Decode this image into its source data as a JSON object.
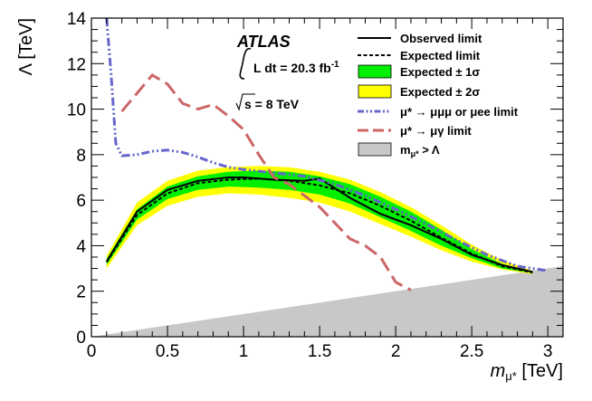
{
  "chart_data": {
    "type": "line",
    "experiment": "ATLAS",
    "luminosity_prefix": "L dt = 20.3 fb",
    "luminosity_sup": "-1",
    "energy_label": "s = 8 TeV",
    "xlabel": "m",
    "xlabel_sub": "μ*",
    "xlabel_unit": " [TeV]",
    "ylabel": "Λ [TeV]",
    "xlim": [
      0,
      3.1
    ],
    "ylim": [
      0,
      14
    ],
    "xticks": [
      0,
      0.5,
      1,
      1.5,
      2,
      2.5,
      3
    ],
    "xtick_labels": [
      "0",
      "0.5",
      "1",
      "1.5",
      "2",
      "2.5",
      "3"
    ],
    "yticks": [
      0,
      2,
      4,
      6,
      8,
      10,
      12,
      14
    ],
    "ytick_labels": [
      "0",
      "2",
      "4",
      "6",
      "8",
      "10",
      "12",
      "14"
    ],
    "colors": {
      "observed": "#000000",
      "expected": "#000000",
      "band1": "#00ee00",
      "band2": "#ffff00",
      "mumumu": "#6666cc",
      "mugamma": "#cc6666",
      "excluded": "#c8c8c8"
    },
    "legend": {
      "observed": "Observed limit",
      "expected": "Expected limit",
      "band1": "Expected ± 1σ",
      "band2": "Expected ± 2σ",
      "mumumu_prefix": "μ* → μμμ or μee",
      "mumumu_suffix": " limit",
      "mugamma_prefix": "μ* → μγ",
      "mugamma_suffix": " limit",
      "excluded_prefix": "m",
      "excluded_sub": "μ*",
      "excluded_suffix": " > Λ"
    },
    "series": [
      {
        "name": "Expected ± 2σ",
        "x": [
          0.1,
          0.3,
          0.5,
          0.7,
          0.9,
          1.1,
          1.3,
          1.5,
          1.7,
          1.9,
          2.1,
          2.3,
          2.5,
          2.7,
          2.9
        ],
        "upper": [
          3.55,
          5.9,
          6.85,
          7.3,
          7.45,
          7.5,
          7.45,
          7.25,
          6.9,
          6.35,
          5.7,
          4.9,
          4.05,
          3.35,
          2.9
        ],
        "lower": [
          3.0,
          4.9,
          5.75,
          6.15,
          6.3,
          6.25,
          6.1,
          5.9,
          5.5,
          4.95,
          4.4,
          3.8,
          3.3,
          2.95,
          2.75
        ]
      },
      {
        "name": "Expected ± 1σ",
        "x": [
          0.1,
          0.3,
          0.5,
          0.7,
          0.9,
          1.1,
          1.3,
          1.5,
          1.7,
          1.9,
          2.1,
          2.3,
          2.5,
          2.7,
          2.9
        ],
        "upper": [
          3.42,
          5.6,
          6.6,
          7.05,
          7.25,
          7.3,
          7.25,
          7.05,
          6.7,
          6.15,
          5.5,
          4.7,
          3.85,
          3.2,
          2.85
        ],
        "lower": [
          3.15,
          5.15,
          6.05,
          6.45,
          6.6,
          6.55,
          6.45,
          6.25,
          5.85,
          5.25,
          4.65,
          4.0,
          3.45,
          3.0,
          2.8
        ]
      },
      {
        "name": "Expected limit",
        "x": [
          0.1,
          0.3,
          0.5,
          0.7,
          0.9,
          1.1,
          1.3,
          1.5,
          1.7,
          1.9,
          2.1,
          2.3,
          2.5,
          2.7,
          2.9
        ],
        "y": [
          3.28,
          5.35,
          6.3,
          6.75,
          6.9,
          6.95,
          6.85,
          6.65,
          6.3,
          5.75,
          5.1,
          4.35,
          3.65,
          3.1,
          2.82
        ]
      },
      {
        "name": "Observed limit",
        "x": [
          0.1,
          0.3,
          0.5,
          0.7,
          0.9,
          1.0,
          1.2,
          1.4,
          1.5,
          1.7,
          1.9,
          2.1,
          2.3,
          2.5,
          2.7,
          2.9
        ],
        "y": [
          3.3,
          5.5,
          6.45,
          6.85,
          7.0,
          7.0,
          6.9,
          6.85,
          6.95,
          6.1,
          5.4,
          4.9,
          4.3,
          3.6,
          3.15,
          2.85
        ]
      },
      {
        "name": "μ* → μμμ or μee limit",
        "x": [
          0.1,
          0.13,
          0.16,
          0.2,
          0.3,
          0.4,
          0.5,
          0.6,
          0.7,
          0.8,
          0.9,
          1.0,
          1.2,
          1.4,
          1.6,
          1.8,
          2.0,
          2.2,
          2.4,
          2.6,
          2.8,
          3.0
        ],
        "y": [
          14.0,
          11.5,
          8.5,
          7.95,
          8.0,
          8.15,
          8.2,
          8.1,
          7.9,
          7.65,
          7.45,
          7.35,
          7.2,
          7.05,
          6.7,
          6.2,
          5.6,
          4.95,
          4.25,
          3.6,
          3.1,
          2.9
        ]
      },
      {
        "name": "μ* → μγ limit",
        "x": [
          0.2,
          0.3,
          0.4,
          0.5,
          0.6,
          0.7,
          0.8,
          0.9,
          1.0,
          1.1,
          1.2,
          1.3,
          1.5,
          1.7,
          1.8,
          1.9,
          2.0,
          2.1
        ],
        "y": [
          9.9,
          10.7,
          11.5,
          11.1,
          10.25,
          10.0,
          10.2,
          9.7,
          9.1,
          8.0,
          7.0,
          6.7,
          5.7,
          4.3,
          4.0,
          3.5,
          2.4,
          2.05
        ]
      }
    ]
  }
}
